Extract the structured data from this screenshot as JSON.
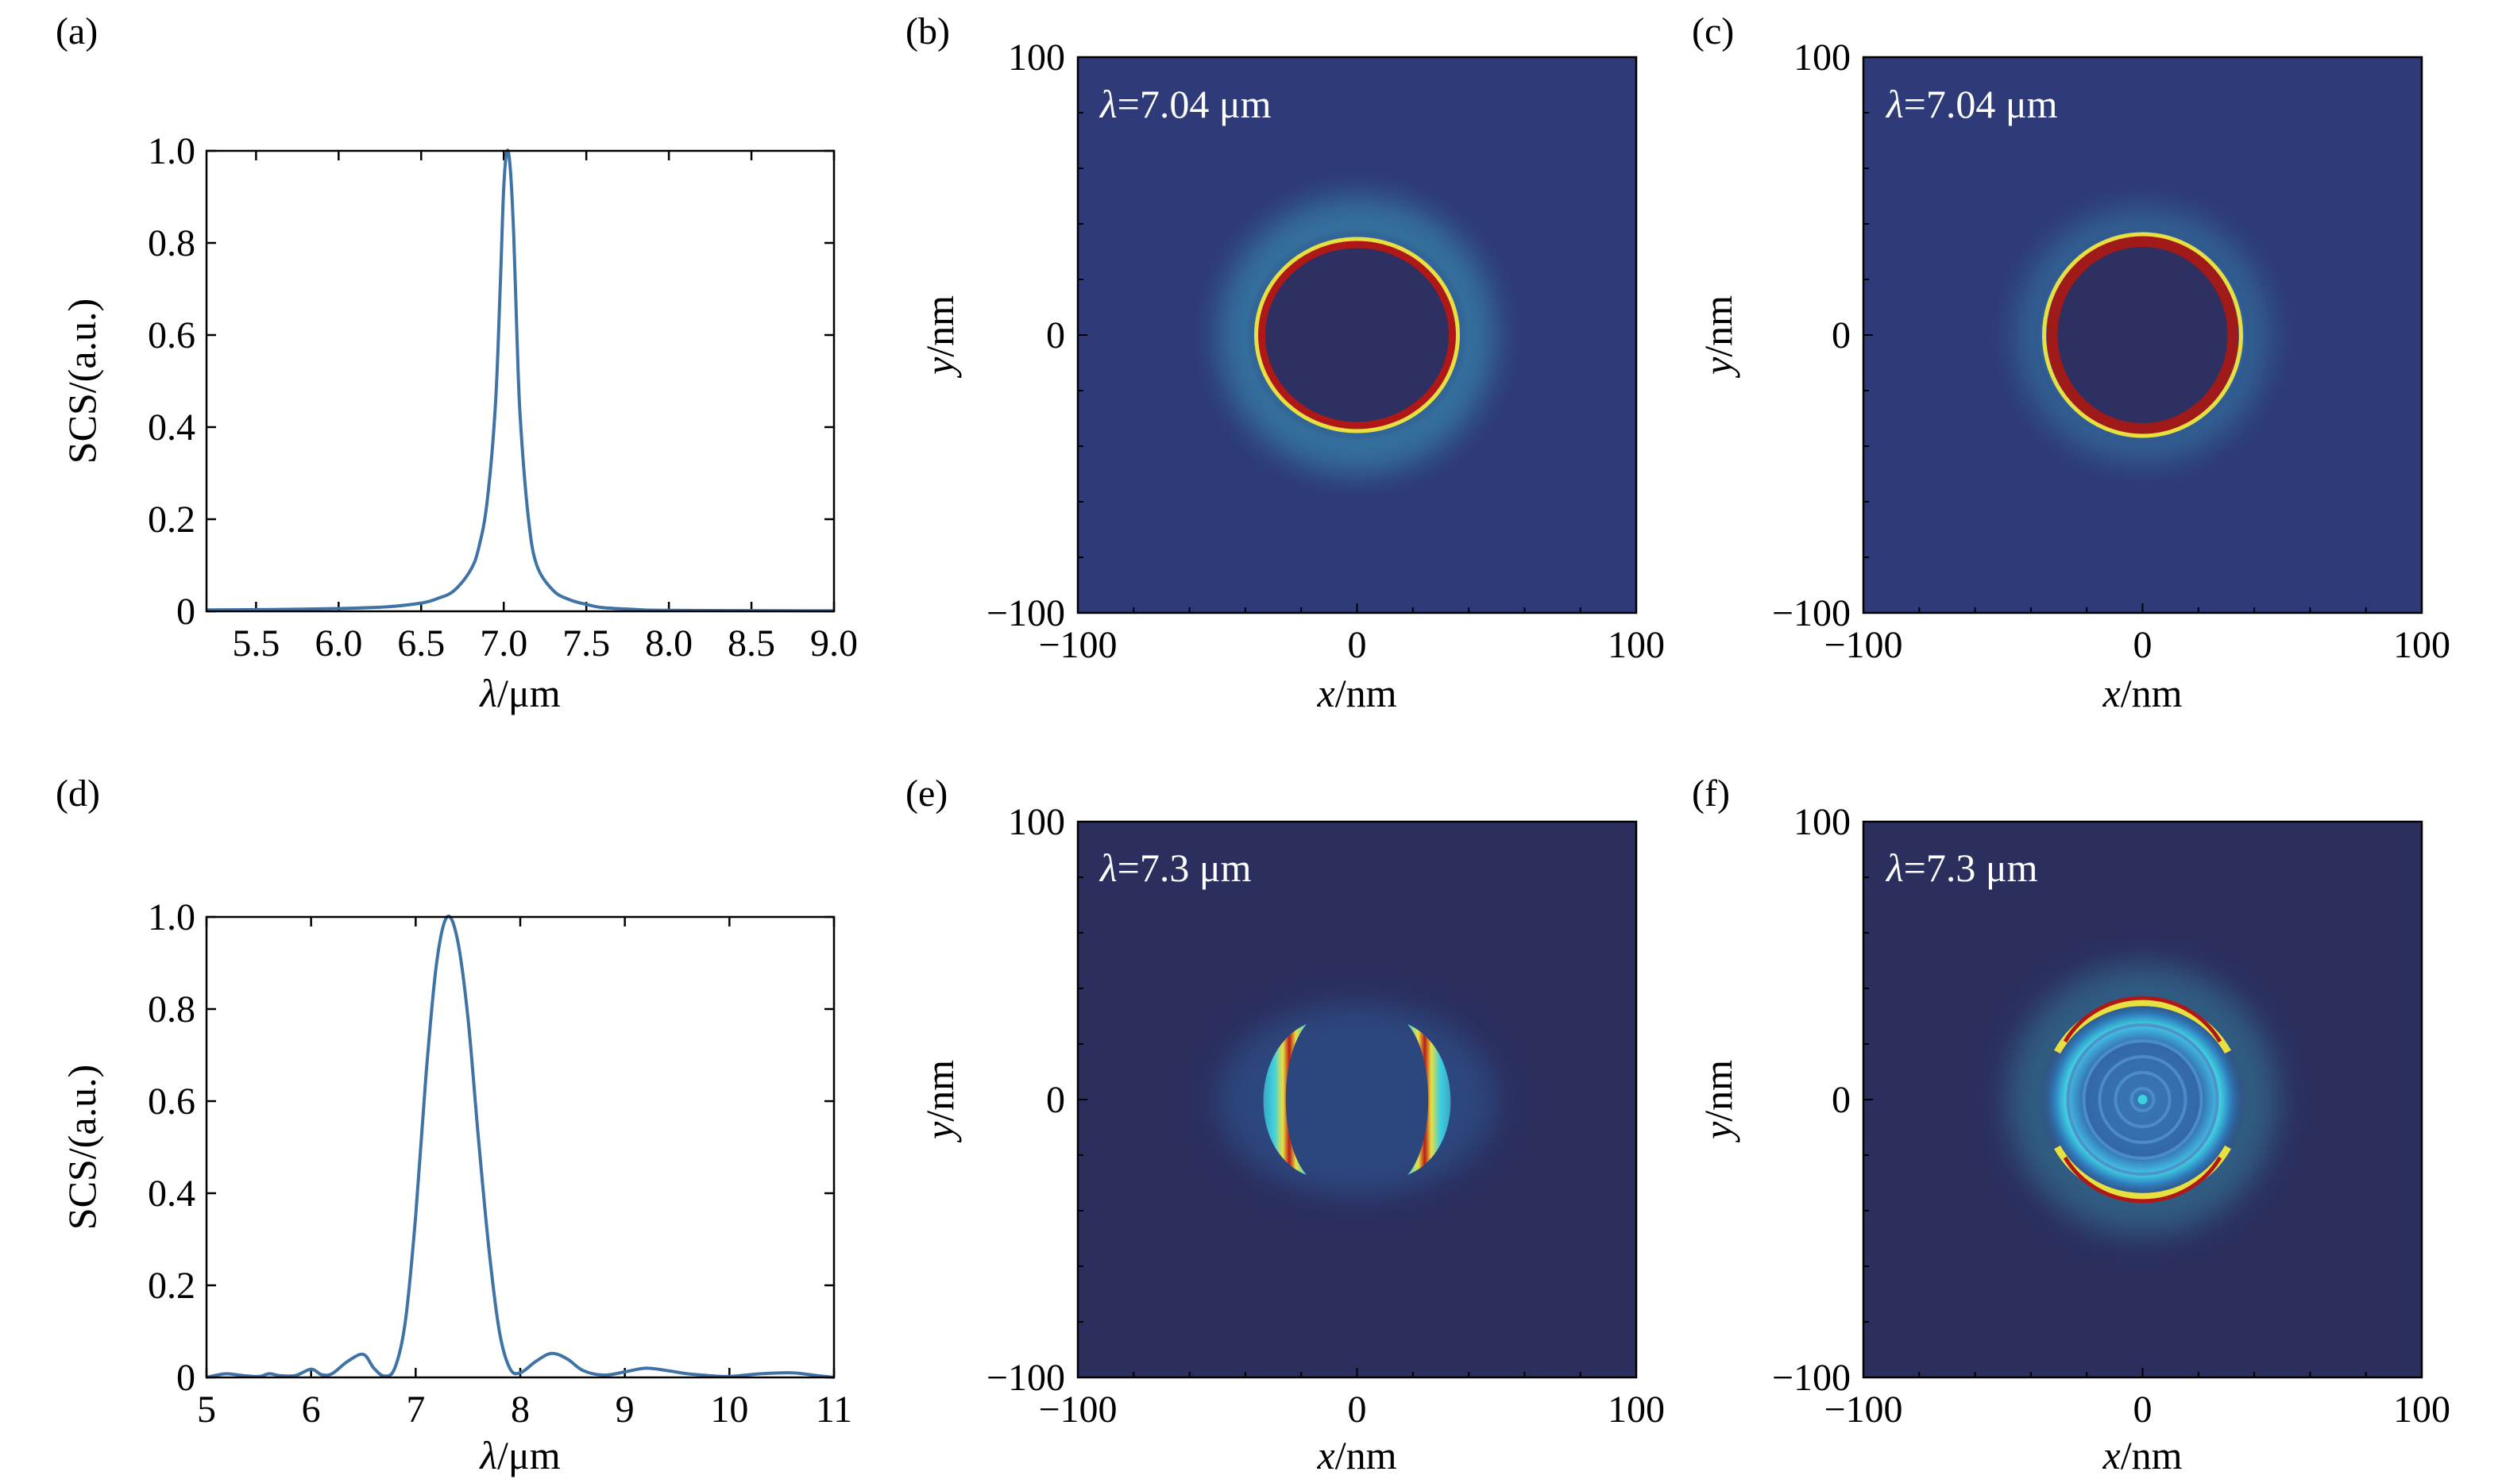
{
  "chart_data": [
    {
      "panel": "(a)",
      "type": "line",
      "xlabel_symbol": "λ",
      "xlabel_unit": "/μm",
      "ylabel": "SCS/(a.u.)",
      "xlim": [
        5.2,
        9.0
      ],
      "ylim": [
        0,
        1.0
      ],
      "xticks": [
        "5.5",
        "6.0",
        "6.5",
        "7.0",
        "7.5",
        "8.0",
        "8.5",
        "9.0"
      ],
      "xtick_values": [
        5.5,
        6.0,
        6.5,
        7.0,
        7.5,
        8.0,
        8.5,
        9.0
      ],
      "yticks": [
        "0",
        "0.2",
        "0.4",
        "0.6",
        "0.8",
        "1.0"
      ],
      "ytick_values": [
        0,
        0.2,
        0.4,
        0.6,
        0.8,
        1.0
      ],
      "color": "#3f73a6",
      "series": [
        {
          "x": [
            5.2,
            5.6,
            6.0,
            6.3,
            6.5,
            6.6,
            6.7,
            6.8,
            6.85,
            6.9,
            6.95,
            6.98,
            7.0,
            7.02,
            7.04,
            7.06,
            7.08,
            7.1,
            7.15,
            7.2,
            7.3,
            7.4,
            7.5,
            7.6,
            7.8,
            8.0,
            9.0
          ],
          "y": [
            0.003,
            0.004,
            0.006,
            0.01,
            0.018,
            0.028,
            0.045,
            0.09,
            0.14,
            0.24,
            0.45,
            0.72,
            0.92,
            1.0,
            0.96,
            0.82,
            0.6,
            0.42,
            0.2,
            0.1,
            0.045,
            0.025,
            0.015,
            0.008,
            0.004,
            0.002,
            0.001
          ]
        }
      ]
    },
    {
      "panel": "(d)",
      "type": "line",
      "xlabel_symbol": "λ",
      "xlabel_unit": "/μm",
      "ylabel": "SCS/(a.u.)",
      "xlim": [
        5,
        11
      ],
      "ylim": [
        0,
        1.0
      ],
      "xticks": [
        "5",
        "6",
        "7",
        "8",
        "9",
        "10",
        "11"
      ],
      "xtick_values": [
        5,
        6,
        7,
        8,
        9,
        10,
        11
      ],
      "yticks": [
        "0",
        "0.2",
        "0.4",
        "0.6",
        "0.8",
        "1.0"
      ],
      "ytick_values": [
        0,
        0.2,
        0.4,
        0.6,
        0.8,
        1.0
      ],
      "color": "#3f73a6",
      "series": [
        {
          "x": [
            5.0,
            5.1,
            5.2,
            5.35,
            5.5,
            5.6,
            5.7,
            5.85,
            6.0,
            6.1,
            6.2,
            6.35,
            6.5,
            6.6,
            6.7,
            6.8,
            6.9,
            7.0,
            7.1,
            7.2,
            7.3,
            7.4,
            7.5,
            7.6,
            7.7,
            7.8,
            7.9,
            8.0,
            8.15,
            8.3,
            8.45,
            8.6,
            8.8,
            9.0,
            9.2,
            9.4,
            9.6,
            9.8,
            10.0,
            10.3,
            10.6,
            10.8,
            11.0
          ],
          "y": [
            0.0,
            0.005,
            0.008,
            0.004,
            0.002,
            0.008,
            0.004,
            0.004,
            0.018,
            0.006,
            0.008,
            0.035,
            0.05,
            0.02,
            0.003,
            0.02,
            0.12,
            0.35,
            0.66,
            0.9,
            1.0,
            0.95,
            0.78,
            0.52,
            0.28,
            0.1,
            0.02,
            0.01,
            0.035,
            0.052,
            0.04,
            0.015,
            0.005,
            0.012,
            0.02,
            0.015,
            0.008,
            0.004,
            0.002,
            0.008,
            0.01,
            0.005,
            0.0
          ]
        }
      ]
    },
    {
      "panel": "(b)",
      "type": "heatmap",
      "annotation_symbol": "λ",
      "annotation_value": "=7.04 μm",
      "xlabel_symbol": "x",
      "xlabel_unit": "/nm",
      "ylabel_symbol": "y",
      "ylabel_unit": "/nm",
      "xlim": [
        -100,
        100
      ],
      "ylim": [
        -100,
        100
      ],
      "xticks": [
        "−100",
        "0",
        "100"
      ],
      "yticks": [
        "−100",
        "0",
        "100"
      ],
      "tick_values": [
        -100,
        0,
        100
      ],
      "field_pattern": "full-ring",
      "ring_radius_nm": 32
    },
    {
      "panel": "(c)",
      "type": "heatmap",
      "annotation_symbol": "λ",
      "annotation_value": "=7.04 μm",
      "xlabel_symbol": "x",
      "xlabel_unit": "/nm",
      "ylabel_symbol": "y",
      "ylabel_unit": "/nm",
      "xlim": [
        -100,
        100
      ],
      "ylim": [
        -100,
        100
      ],
      "xticks": [
        "−100",
        "0",
        "100"
      ],
      "yticks": [
        "−100",
        "0",
        "100"
      ],
      "tick_values": [
        -100,
        0,
        100
      ],
      "field_pattern": "full-ring",
      "ring_radius_nm": 32
    },
    {
      "panel": "(e)",
      "type": "heatmap",
      "annotation_symbol": "λ",
      "annotation_value": "=7.3 μm",
      "xlabel_symbol": "x",
      "xlabel_unit": "/nm",
      "ylabel_symbol": "y",
      "ylabel_unit": "/nm",
      "xlim": [
        -100,
        100
      ],
      "ylim": [
        -100,
        100
      ],
      "xticks": [
        "−100",
        "0",
        "100"
      ],
      "yticks": [
        "−100",
        "0",
        "100"
      ],
      "tick_values": [
        -100,
        0,
        100
      ],
      "field_pattern": "crescents-left-right",
      "ring_radius_nm": 30
    },
    {
      "panel": "(f)",
      "type": "heatmap",
      "annotation_symbol": "λ",
      "annotation_value": "=7.3 μm",
      "xlabel_symbol": "x",
      "xlabel_unit": "/nm",
      "ylabel_symbol": "y",
      "ylabel_unit": "/nm",
      "xlim": [
        -100,
        100
      ],
      "ylim": [
        -100,
        100
      ],
      "xticks": [
        "−100",
        "0",
        "100"
      ],
      "yticks": [
        "−100",
        "0",
        "100"
      ],
      "tick_values": [
        -100,
        0,
        100
      ],
      "field_pattern": "ring-top-bottom-with-inner-fringes",
      "ring_radius_nm": 32
    }
  ],
  "colors": {
    "line": "#3f73a6",
    "heatmap_background": "#2e3b78",
    "heatmap_background_dark": "#2b2f5e",
    "ring_inner_dark": "#2d3060",
    "hot_red": "#9e1b1b",
    "cyan": "#3fd0e0",
    "yellow": "#e8e040"
  }
}
